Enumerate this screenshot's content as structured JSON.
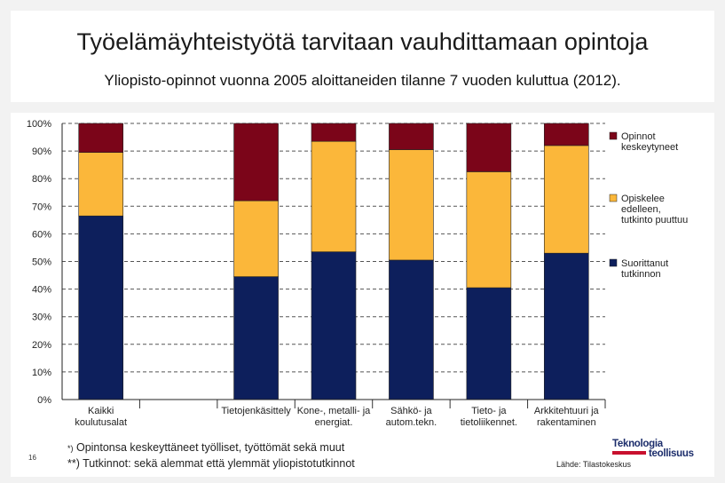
{
  "header": {
    "title": "Työelämäyhteistyötä tarvitaan vauhdittamaan opintoja",
    "subtitle": "Yliopisto-opinnot vuonna 2005 aloittaneiden tilanne 7 vuoden kuluttua (2012)."
  },
  "chart_data": {
    "type": "bar",
    "stacked": true,
    "categories": [
      [
        "Kaikki",
        "koulutusalat"
      ],
      [
        "Tietojenkäsittely"
      ],
      [
        "Kone-, metalli- ja",
        "energiat."
      ],
      [
        "Sähkö- ja",
        "autom.tekn."
      ],
      [
        "Tieto- ja",
        "tietoliikennet."
      ],
      [
        "Arkkitehtuuri ja",
        "rakentaminen"
      ]
    ],
    "series": [
      {
        "name": "Suorittanut tutkinnon",
        "legend_lines": [
          "Suorittanut",
          "tutkinnon"
        ],
        "color": "#0d1f5c",
        "values": [
          66.5,
          44.5,
          53.5,
          50.5,
          40.5,
          53
        ]
      },
      {
        "name": "Opiskelee edelleen, tutkinto puuttuu",
        "legend_lines": [
          "Opiskelee",
          "edelleen,",
          "tutkinto puuttuu"
        ],
        "color": "#fbb73a",
        "values": [
          23,
          27.5,
          40,
          40,
          42,
          39
        ]
      },
      {
        "name": "Opinnot keskeytyneet",
        "legend_lines": [
          "Opinnot",
          "keskeytyneet"
        ],
        "color": "#7b0519",
        "values": [
          10.5,
          28,
          6.5,
          9.5,
          17.5,
          8
        ]
      }
    ],
    "ylim": [
      0,
      100
    ],
    "yticks": [
      "0%",
      "10%",
      "20%",
      "30%",
      "40%",
      "50%",
      "60%",
      "70%",
      "80%",
      "90%",
      "100%"
    ],
    "grid": "dashed horizontal",
    "legend": "right"
  },
  "footer": {
    "page_number": "16",
    "note1_prefix": "*)",
    "note1_text": " Opintonsa keskeyttäneet työlliset, työttömät sekä muut",
    "note2": "**) Tutkinnot: sekä alemmat että ylemmät yliopistotutkinnot",
    "logo_line1": "Teknologia",
    "logo_line2": "teollisuus",
    "source": "Lähde: Tilastokeskus"
  }
}
